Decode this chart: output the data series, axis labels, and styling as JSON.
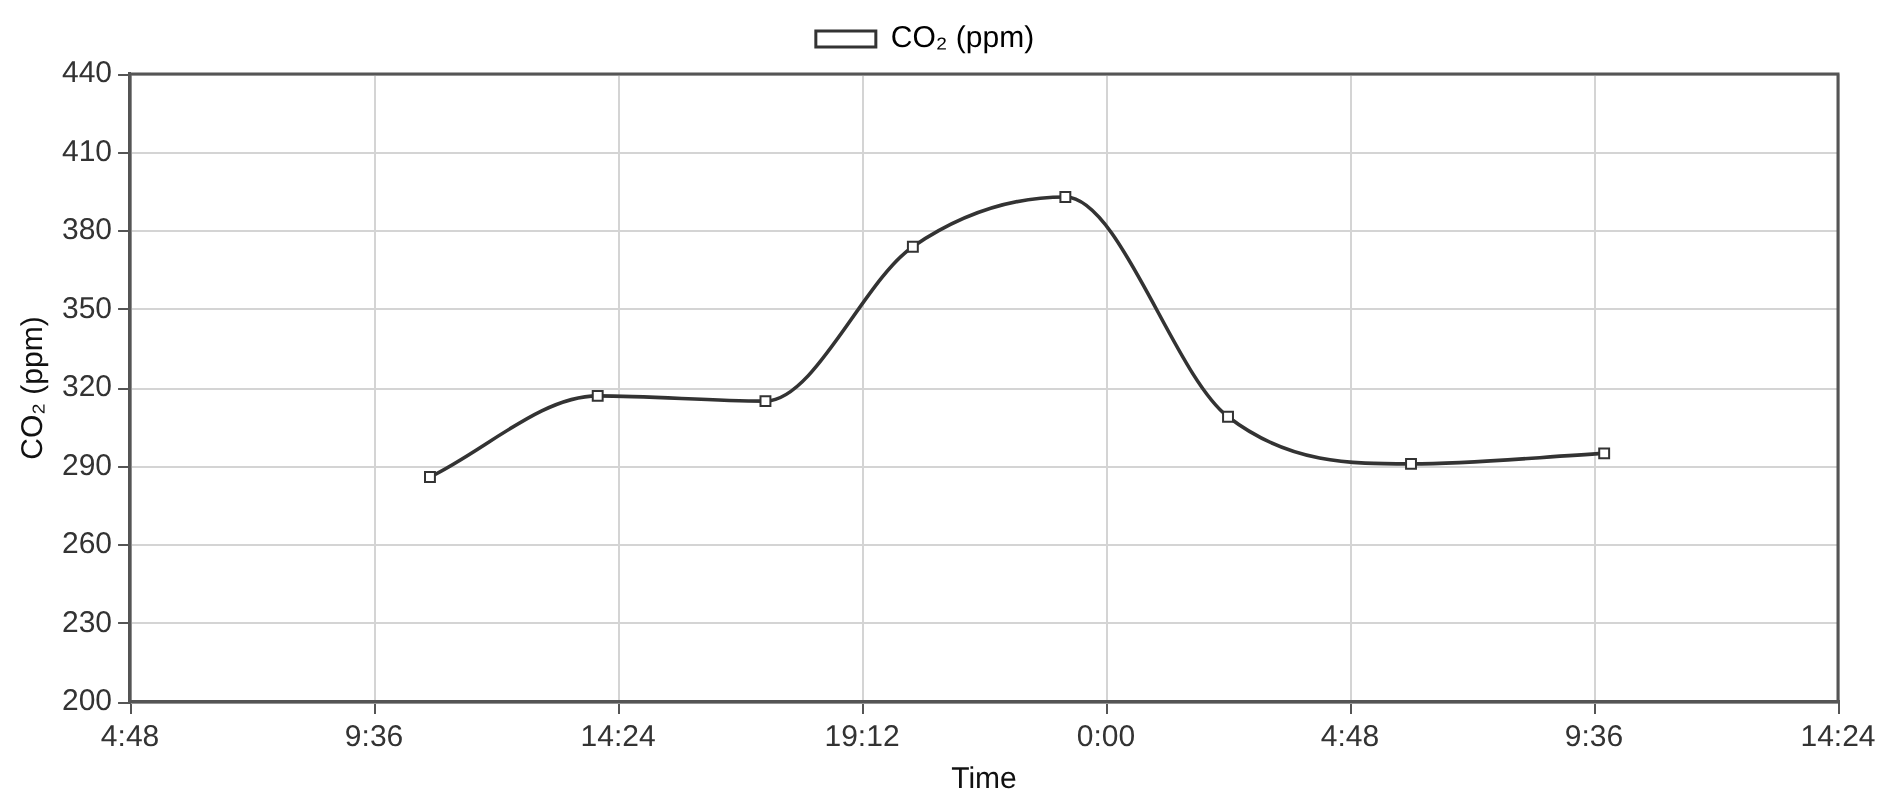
{
  "chart_data": {
    "type": "line",
    "xlabel": "Time",
    "ylabel": "CO₂ (ppm)",
    "x": [
      "2000-01-01T10:42",
      "2000-01-01T14:00",
      "2000-01-01T17:18",
      "2000-01-01T20:12",
      "2000-01-01T23:12",
      "2000-01-02T02:24",
      "2000-01-02T06:00",
      "2000-01-02T09:48"
    ],
    "series": [
      {
        "name": "CO₂ (ppm)",
        "color": "#333333",
        "values": [
          286,
          317,
          315,
          374,
          393,
          309,
          291,
          295
        ]
      }
    ],
    "xlim": [
      "2000-01-01T04:48",
      "2000-01-02T14:24"
    ],
    "xticks": [
      {
        "value": "2000-01-01T04:48",
        "label": "4:48"
      },
      {
        "value": "2000-01-01T09:36",
        "label": "9:36"
      },
      {
        "value": "2000-01-01T14:24",
        "label": "14:24"
      },
      {
        "value": "2000-01-01T19:12",
        "label": "19:12"
      },
      {
        "value": "2000-01-02T00:00",
        "label": "0:00"
      },
      {
        "value": "2000-01-02T04:48",
        "label": "4:48"
      },
      {
        "value": "2000-01-02T09:36",
        "label": "9:36"
      },
      {
        "value": "2000-01-02T14:24",
        "label": "14:24"
      }
    ],
    "ylim": [
      200,
      440
    ],
    "yticks": [
      200,
      230,
      260,
      290,
      320,
      350,
      380,
      410,
      440
    ],
    "grid": true,
    "legend": "top",
    "marker": "square",
    "line_style": "solid"
  }
}
